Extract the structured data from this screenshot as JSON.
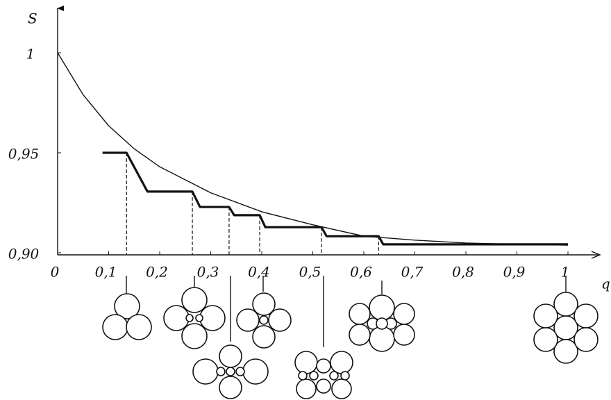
{
  "chart_data": {
    "type": "line",
    "y_label": "S",
    "x_label": "q",
    "xlim": [
      0,
      1.05
    ],
    "ylim": [
      0.9,
      1.02
    ],
    "xticks": [
      0,
      {
        "value": 0.1,
        "label": "0,1"
      },
      {
        "value": 0.2,
        "label": "0,2"
      },
      {
        "value": 0.3,
        "label": "0,3"
      },
      {
        "value": 0.4,
        "label": "0,4"
      },
      {
        "value": 0.5,
        "label": "0,5"
      },
      {
        "value": 0.6,
        "label": "0,6"
      },
      {
        "value": 0.7,
        "label": "0,7"
      },
      {
        "value": 0.8,
        "label": "0,8"
      },
      {
        "value": 0.9,
        "label": "0,9"
      },
      1
    ],
    "yticks": [
      {
        "value": 0.9,
        "label": "0,90"
      },
      {
        "value": 0.95,
        "label": "0,95"
      },
      1
    ],
    "series": [
      {
        "color": "#111111",
        "style": "thin",
        "x": [
          0,
          0.05,
          0.1,
          0.15,
          0.2,
          0.3,
          0.4,
          0.5,
          0.6,
          0.7,
          0.8,
          0.9,
          1
        ],
        "values": [
          1,
          0.979,
          0.9635,
          0.952,
          0.943,
          0.93,
          0.9205,
          0.914,
          0.9083,
          0.9063,
          0.9049,
          0.9042,
          0.9038
        ]
      },
      {
        "color": "#111111",
        "style": "thick",
        "x": [
          0.088,
          0.135,
          0.176,
          0.264,
          0.279,
          0.336,
          0.346,
          0.396,
          0.407,
          0.517,
          0.527,
          0.629,
          0.638,
          1
        ],
        "values": [
          0.95,
          0.95,
          0.9306,
          0.9306,
          0.9229,
          0.9229,
          0.9188,
          0.9188,
          0.9128,
          0.9128,
          0.9083,
          0.9083,
          0.9042,
          0.9042
        ]
      }
    ]
  }
}
